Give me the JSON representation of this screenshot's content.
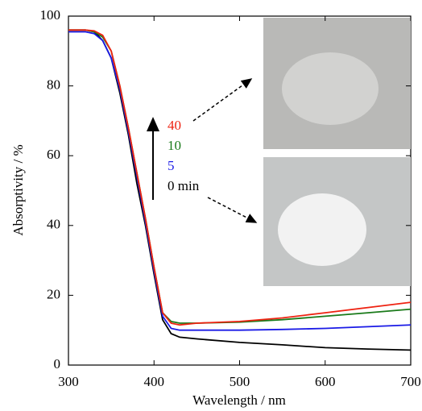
{
  "chart_data": {
    "type": "line",
    "x_label": "Wavelength / nm",
    "y_label": "Absorptivity / %",
    "x": [
      300,
      320,
      330,
      340,
      350,
      360,
      370,
      380,
      390,
      400,
      410,
      420,
      430,
      450,
      500,
      550,
      600,
      650,
      700
    ],
    "series": [
      {
        "name": "0 min",
        "color": "#000000",
        "values": [
          96,
          96,
          95.5,
          93,
          88,
          78,
          66,
          52,
          40,
          26,
          13,
          9,
          8,
          7.5,
          6.5,
          5.8,
          5,
          4.6,
          4.3
        ]
      },
      {
        "name": "5",
        "color": "#1a1ae6",
        "values": [
          95.5,
          95.5,
          95,
          93,
          88,
          79,
          67,
          54,
          41,
          27,
          14,
          10.5,
          10,
          10,
          10,
          10.2,
          10.5,
          11,
          11.5
        ]
      },
      {
        "name": "10",
        "color": "#1a7a1a",
        "values": [
          96,
          96,
          95.5,
          94,
          90,
          80,
          68,
          55,
          42,
          28,
          15,
          12.5,
          12,
          12,
          12.3,
          13,
          14,
          15,
          16
        ]
      },
      {
        "name": "40",
        "color": "#ee2211",
        "values": [
          96,
          96,
          95.8,
          94.5,
          90,
          80,
          68,
          55,
          42,
          28,
          15,
          12,
          11.5,
          12,
          12.5,
          13.5,
          15,
          16.5,
          18
        ]
      }
    ],
    "xlim": [
      300,
      700
    ],
    "xticks": [
      300,
      400,
      500,
      600,
      700
    ],
    "ylim": [
      0,
      100
    ],
    "yticks": [
      0,
      20,
      40,
      60,
      80,
      100
    ]
  }
}
